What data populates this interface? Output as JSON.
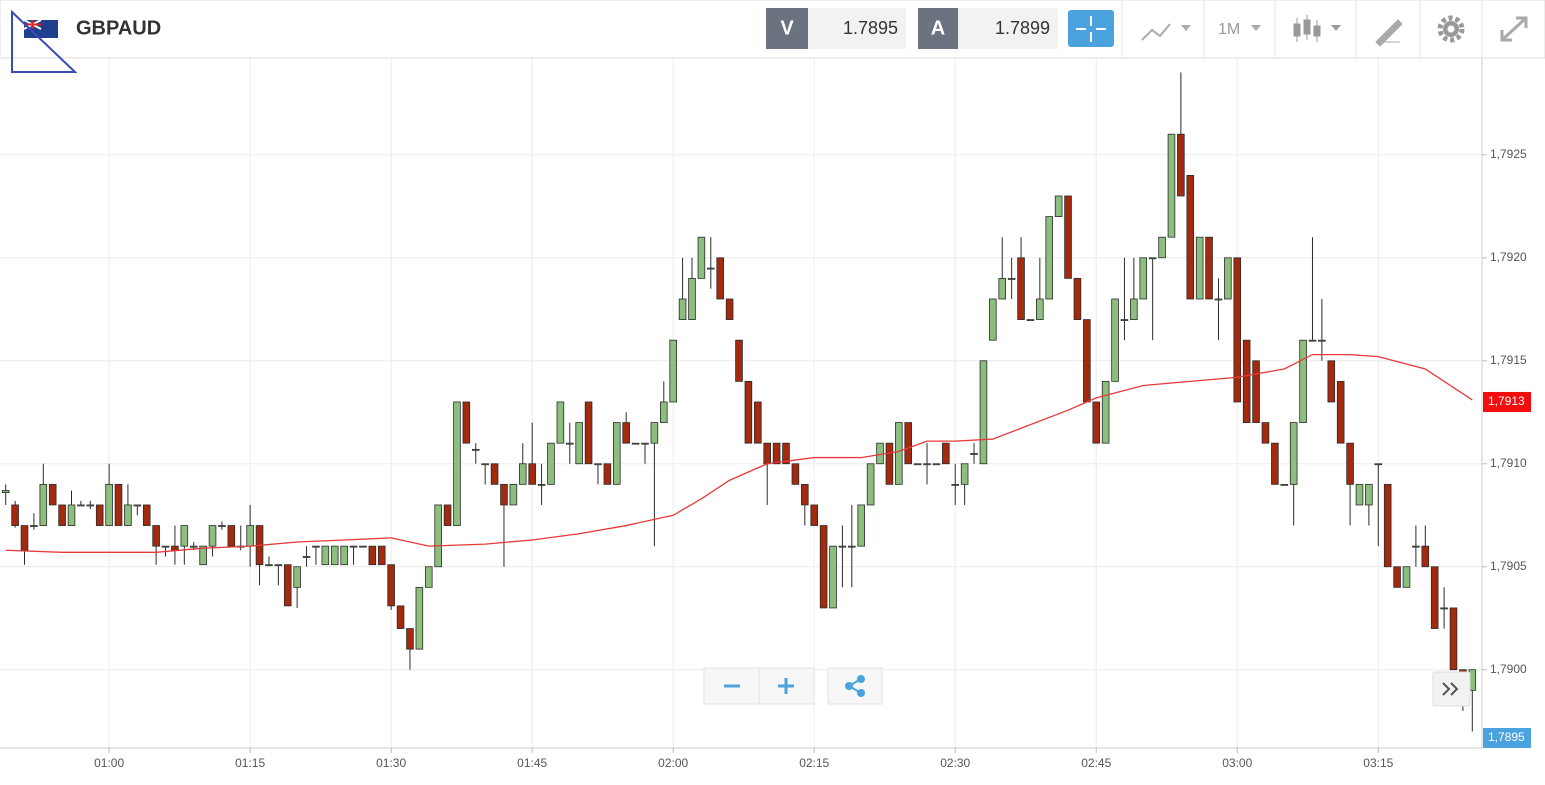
{
  "header": {
    "symbol": "GBPAUD",
    "bid_label": "V",
    "bid": 1.7895,
    "ask_label": "A",
    "ask": 1.7899,
    "timeframe": "1M"
  },
  "chart_data": {
    "type": "candlestick",
    "x": [
      "00:49",
      "00:50",
      "00:51",
      "00:52",
      "00:53",
      "00:54",
      "00:55",
      "00:56",
      "00:57",
      "00:58",
      "00:59",
      "01:00",
      "01:01",
      "01:02",
      "01:03",
      "01:04",
      "01:05",
      "01:06",
      "01:07",
      "01:08",
      "01:09",
      "01:10",
      "01:11",
      "01:12",
      "01:13",
      "01:14",
      "01:15",
      "01:16",
      "01:17",
      "01:18",
      "01:19",
      "01:20",
      "01:21",
      "01:22",
      "01:23",
      "01:24",
      "01:25",
      "01:26",
      "01:27",
      "01:28",
      "01:29",
      "01:30",
      "01:31",
      "01:32",
      "01:33",
      "01:34",
      "01:35",
      "01:36",
      "01:37",
      "01:38",
      "01:39",
      "01:40",
      "01:41",
      "01:42",
      "01:43",
      "01:44",
      "01:45",
      "01:46",
      "01:47",
      "01:48",
      "01:49",
      "01:50",
      "01:51",
      "01:52",
      "01:53",
      "01:54",
      "01:55",
      "01:56",
      "01:57",
      "01:58",
      "01:59",
      "02:00",
      "02:01",
      "02:02",
      "02:03",
      "02:04",
      "02:05",
      "02:06",
      "02:07",
      "02:08",
      "02:09",
      "02:10",
      "02:11",
      "02:12",
      "02:13",
      "02:14",
      "02:15",
      "02:16",
      "02:17",
      "02:18",
      "02:19",
      "02:20",
      "02:21",
      "02:22",
      "02:23",
      "02:24",
      "02:25",
      "02:26",
      "02:27",
      "02:28",
      "02:29",
      "02:30",
      "02:31",
      "02:32",
      "02:33",
      "02:34",
      "02:35",
      "02:36",
      "02:37",
      "02:38",
      "02:39",
      "02:40",
      "02:41",
      "02:42",
      "02:43",
      "02:44",
      "02:45",
      "02:46",
      "02:47",
      "02:48",
      "02:49",
      "02:50",
      "02:51",
      "02:52",
      "02:53",
      "02:54",
      "02:55",
      "02:56",
      "02:57",
      "02:58",
      "02:59",
      "03:00",
      "03:01",
      "03:02",
      "03:03",
      "03:04",
      "03:05",
      "03:06",
      "03:07",
      "03:08",
      "03:09",
      "03:10",
      "03:11",
      "03:12",
      "03:13",
      "03:14",
      "03:15",
      "03:16",
      "03:17",
      "03:18",
      "03:19",
      "03:20",
      "03:21",
      "03:22",
      "03:23",
      "03:24",
      "03:25"
    ],
    "ohlc": {
      "open": [
        1.79086,
        1.7908,
        1.7907,
        1.7907,
        1.7907,
        1.7909,
        1.7908,
        1.7907,
        1.7908,
        1.7908,
        1.7908,
        1.7907,
        1.7909,
        1.7907,
        1.7908,
        1.7908,
        1.7907,
        1.7906,
        1.7906,
        1.7906,
        1.7906,
        1.79051,
        1.7906,
        1.7907,
        1.7907,
        1.7906,
        1.7906,
        1.7907,
        1.79051,
        1.79051,
        1.79051,
        1.7904,
        1.79055,
        1.7906,
        1.79051,
        1.79051,
        1.79051,
        1.7906,
        1.7906,
        1.7906,
        1.7906,
        1.79051,
        1.79031,
        1.7902,
        1.7901,
        1.7904,
        1.7905,
        1.7908,
        1.7907,
        1.7913,
        1.79107,
        1.791,
        1.791,
        1.7909,
        1.7908,
        1.7909,
        1.791,
        1.7909,
        1.7909,
        1.7911,
        1.7911,
        1.791,
        1.7913,
        1.791,
        1.791,
        1.7909,
        1.7912,
        1.7911,
        1.7911,
        1.7911,
        1.7912,
        1.7913,
        1.7917,
        1.7917,
        1.7919,
        1.79195,
        1.792,
        1.7918,
        1.7916,
        1.7914,
        1.7913,
        1.7911,
        1.7911,
        1.7911,
        1.791,
        1.7909,
        1.7908,
        1.7907,
        1.7903,
        1.7906,
        1.7906,
        1.7906,
        1.7908,
        1.791,
        1.7911,
        1.7909,
        1.7912,
        1.791,
        1.791,
        1.791,
        1.7911,
        1.7909,
        1.7909,
        1.79105,
        1.791,
        1.7916,
        1.7918,
        1.7919,
        1.792,
        1.7917,
        1.7917,
        1.7918,
        1.7922,
        1.7923,
        1.7919,
        1.7917,
        1.7913,
        1.7911,
        1.7914,
        1.7917,
        1.7917,
        1.7918,
        1.792,
        1.792,
        1.7921,
        1.7926,
        1.7924,
        1.7918,
        1.7921,
        1.7918,
        1.7918,
        1.792,
        1.7916,
        1.7915,
        1.7912,
        1.7911,
        1.7909,
        1.7909,
        1.7912,
        1.7916,
        1.7916,
        1.7915,
        1.7914,
        1.7911,
        1.7908,
        1.7908,
        1.791,
        1.7909,
        1.7905,
        1.7904,
        1.7906,
        1.7906,
        1.7905,
        1.7903,
        1.7903,
        1.79,
        1.7899
      ],
      "high": [
        1.7909,
        1.79082,
        1.7907,
        1.79076,
        1.791,
        1.7909,
        1.7908,
        1.79087,
        1.79082,
        1.79082,
        1.7908,
        1.791,
        1.7909,
        1.7909,
        1.7908,
        1.7908,
        1.7907,
        1.7906,
        1.7907,
        1.7907,
        1.79062,
        1.7906,
        1.7907,
        1.79072,
        1.7907,
        1.7907,
        1.7908,
        1.7907,
        1.79055,
        1.79051,
        1.79051,
        1.7905,
        1.7906,
        1.7906,
        1.7906,
        1.7906,
        1.7906,
        1.7906,
        1.7906,
        1.7906,
        1.7906,
        1.79051,
        1.79031,
        1.7902,
        1.7904,
        1.7905,
        1.7908,
        1.7908,
        1.7913,
        1.7913,
        1.7911,
        1.791,
        1.791,
        1.7909,
        1.7909,
        1.7911,
        1.7912,
        1.791,
        1.7911,
        1.7913,
        1.7912,
        1.7912,
        1.7913,
        1.791,
        1.791,
        1.7912,
        1.79125,
        1.7911,
        1.7911,
        1.7912,
        1.7914,
        1.7916,
        1.792,
        1.792,
        1.7921,
        1.7921,
        1.792,
        1.7918,
        1.7916,
        1.7914,
        1.7913,
        1.7911,
        1.7911,
        1.7911,
        1.791,
        1.7909,
        1.7908,
        1.7907,
        1.7906,
        1.7907,
        1.7908,
        1.7908,
        1.791,
        1.7911,
        1.7911,
        1.7912,
        1.7912,
        1.791,
        1.7911,
        1.791,
        1.7911,
        1.791,
        1.791,
        1.7911,
        1.7915,
        1.7918,
        1.7921,
        1.792,
        1.7921,
        1.7917,
        1.792,
        1.7922,
        1.7923,
        1.7923,
        1.7919,
        1.7917,
        1.7913,
        1.7914,
        1.7918,
        1.792,
        1.792,
        1.792,
        1.792,
        1.7921,
        1.7926,
        1.7929,
        1.7924,
        1.7921,
        1.7921,
        1.7919,
        1.792,
        1.792,
        1.7916,
        1.7915,
        1.7912,
        1.7911,
        1.7909,
        1.7912,
        1.7916,
        1.7921,
        1.7918,
        1.7915,
        1.7914,
        1.7911,
        1.7909,
        1.7909,
        1.791,
        1.7909,
        1.7905,
        1.7905,
        1.7907,
        1.7907,
        1.7905,
        1.7904,
        1.7903,
        1.79,
        1.79
      ],
      "low": [
        1.7908,
        1.79069,
        1.79051,
        1.79068,
        1.7907,
        1.7908,
        1.7907,
        1.7907,
        1.7908,
        1.79078,
        1.7907,
        1.7907,
        1.7907,
        1.7907,
        1.79075,
        1.7907,
        1.79051,
        1.79055,
        1.79051,
        1.79051,
        1.79058,
        1.79051,
        1.79055,
        1.79068,
        1.7906,
        1.79058,
        1.7905,
        1.79041,
        1.79051,
        1.79041,
        1.79031,
        1.7903,
        1.7905,
        1.79051,
        1.79051,
        1.79051,
        1.79051,
        1.79051,
        1.7906,
        1.79051,
        1.79051,
        1.79029,
        1.7902,
        1.79,
        1.7901,
        1.7904,
        1.7905,
        1.7907,
        1.7907,
        1.7911,
        1.791,
        1.7909,
        1.7909,
        1.7905,
        1.7908,
        1.7909,
        1.7909,
        1.7908,
        1.7909,
        1.7911,
        1.791,
        1.791,
        1.791,
        1.7909,
        1.7909,
        1.7909,
        1.7911,
        1.7911,
        1.791,
        1.7906,
        1.7912,
        1.7913,
        1.7917,
        1.7917,
        1.7919,
        1.79185,
        1.7918,
        1.7917,
        1.7914,
        1.7911,
        1.7911,
        1.7908,
        1.791,
        1.791,
        1.7909,
        1.7907,
        1.7907,
        1.7903,
        1.7903,
        1.7904,
        1.7904,
        1.7906,
        1.7908,
        1.791,
        1.7909,
        1.7909,
        1.791,
        1.791,
        1.7909,
        1.791,
        1.791,
        1.7908,
        1.7908,
        1.791,
        1.791,
        1.7916,
        1.7918,
        1.7918,
        1.7917,
        1.7917,
        1.7917,
        1.7918,
        1.7922,
        1.7919,
        1.7917,
        1.7913,
        1.7911,
        1.7911,
        1.7914,
        1.7916,
        1.7917,
        1.7918,
        1.7916,
        1.792,
        1.7921,
        1.7923,
        1.7918,
        1.7918,
        1.7918,
        1.7916,
        1.7918,
        1.7913,
        1.7912,
        1.7912,
        1.7911,
        1.7909,
        1.7909,
        1.7907,
        1.7912,
        1.7916,
        1.7915,
        1.7913,
        1.7911,
        1.7907,
        1.7908,
        1.7907,
        1.7906,
        1.7905,
        1.7904,
        1.7904,
        1.7905,
        1.7905,
        1.7902,
        1.7902,
        1.79,
        1.7898,
        1.7897
      ],
      "close": [
        1.79087,
        1.7907,
        1.79058,
        1.7907,
        1.7909,
        1.7908,
        1.7907,
        1.7908,
        1.7908,
        1.7908,
        1.7907,
        1.7909,
        1.7907,
        1.7908,
        1.7908,
        1.7907,
        1.7906,
        1.7906,
        1.79058,
        1.7907,
        1.7906,
        1.7906,
        1.7907,
        1.7907,
        1.7906,
        1.7906,
        1.7907,
        1.79051,
        1.79051,
        1.79051,
        1.79031,
        1.7905,
        1.79055,
        1.7906,
        1.7906,
        1.7906,
        1.7906,
        1.7906,
        1.7906,
        1.79051,
        1.79051,
        1.79031,
        1.7902,
        1.7901,
        1.7904,
        1.7905,
        1.7908,
        1.7907,
        1.7913,
        1.7911,
        1.79107,
        1.791,
        1.7909,
        1.7908,
        1.7909,
        1.791,
        1.7909,
        1.7909,
        1.7911,
        1.7913,
        1.7911,
        1.7912,
        1.791,
        1.791,
        1.7909,
        1.7912,
        1.7911,
        1.7911,
        1.7911,
        1.7912,
        1.7913,
        1.7916,
        1.7918,
        1.7919,
        1.7921,
        1.79195,
        1.7918,
        1.7917,
        1.7914,
        1.7911,
        1.7911,
        1.791,
        1.791,
        1.791,
        1.7909,
        1.7908,
        1.7907,
        1.7903,
        1.7906,
        1.7906,
        1.7906,
        1.7908,
        1.791,
        1.7911,
        1.7909,
        1.7912,
        1.791,
        1.791,
        1.791,
        1.791,
        1.791,
        1.7909,
        1.791,
        1.79105,
        1.7915,
        1.7918,
        1.7919,
        1.7919,
        1.7917,
        1.7917,
        1.7918,
        1.7922,
        1.7923,
        1.7919,
        1.7917,
        1.7913,
        1.7911,
        1.7914,
        1.7918,
        1.7917,
        1.7918,
        1.792,
        1.792,
        1.7921,
        1.7926,
        1.7923,
        1.7918,
        1.7921,
        1.7918,
        1.7918,
        1.792,
        1.7913,
        1.7912,
        1.7912,
        1.7911,
        1.7909,
        1.7909,
        1.7912,
        1.7916,
        1.7916,
        1.7916,
        1.7913,
        1.7911,
        1.7909,
        1.7909,
        1.7909,
        1.791,
        1.7905,
        1.7904,
        1.7905,
        1.7906,
        1.7905,
        1.7902,
        1.7903,
        1.79,
        1.7899,
        1.79
      ],
      "up_color": "#8cbf7d",
      "down_color": "#a32a0f"
    },
    "overlay": {
      "type": "line",
      "color": "#e8393a",
      "x": [
        "00:49",
        "00:55",
        "01:00",
        "01:05",
        "01:10",
        "01:15",
        "01:20",
        "01:25",
        "01:30",
        "01:34",
        "01:40",
        "01:45",
        "01:50",
        "01:55",
        "02:00",
        "02:03",
        "02:06",
        "02:10",
        "02:15",
        "02:20",
        "02:24",
        "02:27",
        "02:30",
        "02:34",
        "02:38",
        "02:42",
        "02:45",
        "02:50",
        "02:55",
        "03:00",
        "03:05",
        "03:08",
        "03:12",
        "03:15",
        "03:20",
        "03:25"
      ],
      "values": [
        1.79058,
        1.79057,
        1.79057,
        1.79057,
        1.79059,
        1.7906,
        1.79062,
        1.79063,
        1.79064,
        1.7906,
        1.79061,
        1.79063,
        1.79066,
        1.7907,
        1.79075,
        1.79083,
        1.79092,
        1.791,
        1.79103,
        1.79103,
        1.79106,
        1.79111,
        1.79111,
        1.79112,
        1.79119,
        1.79126,
        1.79132,
        1.79138,
        1.7914,
        1.79142,
        1.79146,
        1.79153,
        1.79153,
        1.79152,
        1.79146,
        1.79131
      ]
    },
    "ylim": [
      1.78962,
      1.79297
    ],
    "yticks": [
      {
        "value": 1.79,
        "label": "1,7900"
      },
      {
        "value": 1.7905,
        "label": "1,7905"
      },
      {
        "value": 1.791,
        "label": "1,7910"
      },
      {
        "value": 1.7915,
        "label": "1,7915"
      },
      {
        "value": 1.792,
        "label": "1,7920"
      },
      {
        "value": 1.7925,
        "label": "1,7925"
      }
    ],
    "xticks": [
      "01:00",
      "01:15",
      "01:30",
      "01:45",
      "02:00",
      "02:15",
      "02:30",
      "02:45",
      "03:00",
      "03:15"
    ],
    "grid": true,
    "markers": [
      {
        "value": 1.7913,
        "label": "1,7913",
        "color": "#f20d0d"
      },
      {
        "value": 1.7895,
        "label": "1,7895",
        "color": "#4aa3df"
      }
    ]
  }
}
